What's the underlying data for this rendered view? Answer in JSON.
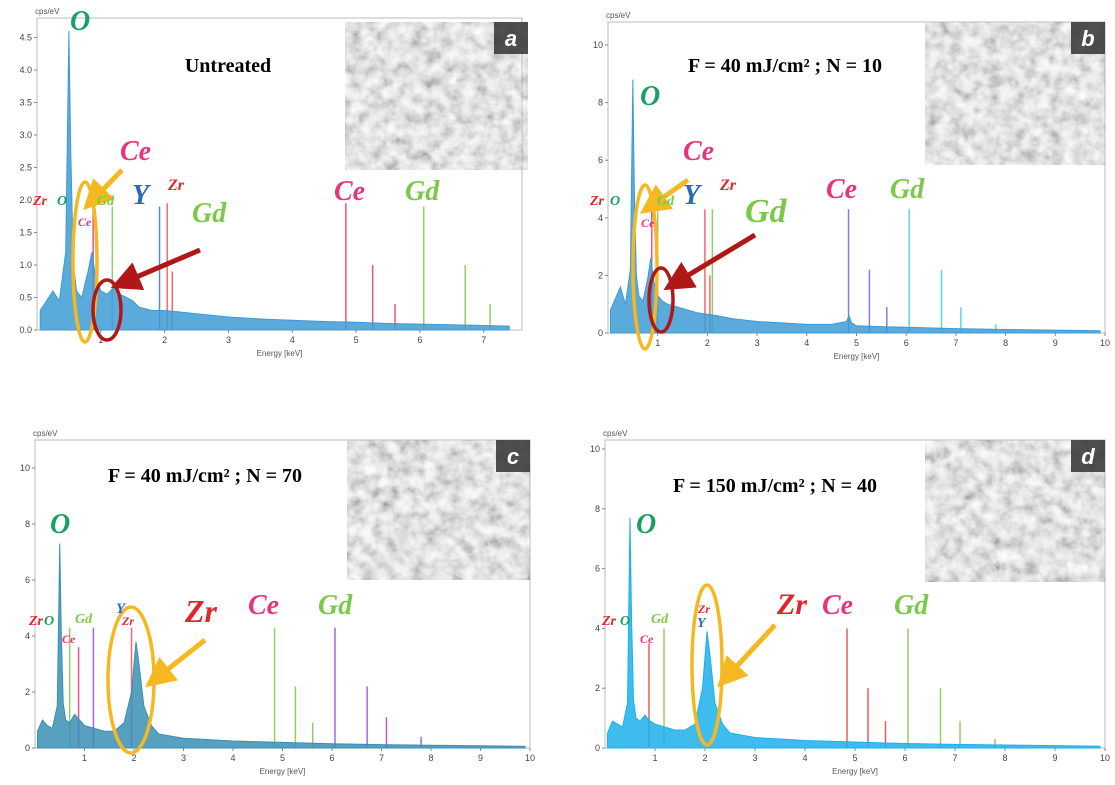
{
  "chart_data": [
    {
      "type": "area",
      "title": "Untreated",
      "x_label": "Energy [keV]",
      "y_label": "cps/eV",
      "inset_label": "a",
      "color": "#3d9bd6",
      "xlim": [
        0,
        7.6
      ],
      "ylim": [
        0,
        4.8
      ],
      "xticks": [
        1,
        2,
        3,
        4,
        5,
        6,
        7
      ],
      "yticks": [
        {
          "value": 0,
          "label": "0.0"
        },
        {
          "value": 0.5,
          "label": "0.5"
        },
        {
          "value": 1,
          "label": "1.0"
        },
        {
          "value": 1.5,
          "label": "1.5"
        },
        {
          "value": 2,
          "label": "2.0"
        },
        {
          "value": 2.5,
          "label": "2.5"
        },
        {
          "value": 3,
          "label": "3.0"
        },
        {
          "value": 3.5,
          "label": "3.5"
        },
        {
          "value": 4,
          "label": "4.0"
        },
        {
          "value": 4.5,
          "label": "4.5"
        }
      ],
      "x": [
        0.05,
        0.15,
        0.25,
        0.35,
        0.45,
        0.5,
        0.53,
        0.57,
        0.62,
        0.7,
        0.8,
        0.86,
        0.92,
        1.0,
        1.1,
        1.2,
        1.3,
        1.4,
        1.5,
        1.6,
        1.8,
        2.0,
        2.2,
        2.5,
        3.0,
        3.5,
        4.0,
        4.5,
        5.0,
        5.5,
        6.0,
        6.5,
        7.0,
        7.4
      ],
      "values": [
        0.3,
        0.45,
        0.6,
        0.45,
        1.2,
        4.6,
        2.7,
        1.0,
        0.6,
        0.5,
        0.9,
        1.2,
        0.8,
        0.6,
        0.55,
        0.65,
        0.55,
        0.5,
        0.45,
        0.35,
        0.3,
        0.3,
        0.28,
        0.25,
        0.2,
        0.17,
        0.15,
        0.13,
        0.12,
        0.1,
        0.09,
        0.08,
        0.07,
        0.06
      ],
      "markers": [
        {
          "color": "#e8347f",
          "x": [
            0.88,
            4.84,
            5.26,
            5.61
          ],
          "values": [
            1.9,
            1.95,
            1.0,
            0.4
          ]
        },
        {
          "color": "#7cc84a",
          "x": [
            1.18,
            6.06,
            6.71,
            7.1
          ],
          "values": [
            1.9,
            1.9,
            1.0,
            0.4
          ]
        },
        {
          "color": "#3a74c4",
          "x": [
            1.92
          ],
          "values": [
            1.9
          ]
        },
        {
          "color": "#f05050",
          "x": [
            2.04,
            2.12
          ],
          "values": [
            1.95,
            0.9
          ]
        }
      ],
      "annotations": [
        {
          "text": "O",
          "color": "#1aa060"
        },
        {
          "text": "Zr",
          "color": "#e0262b"
        },
        {
          "text": "O",
          "color": "#1aa060"
        },
        {
          "text": "Ce",
          "color": "#e8347f"
        },
        {
          "text": "Ce",
          "color": "#e8347f"
        },
        {
          "text": "Gd",
          "color": "#7cc84a"
        },
        {
          "text": "Y",
          "color": "#2a6bb5"
        },
        {
          "text": "Zr",
          "color": "#e0262b"
        },
        {
          "text": "Gd",
          "color": "#7cc84a"
        },
        {
          "text": "Ce",
          "color": "#e8347f"
        },
        {
          "text": "Gd",
          "color": "#7cc84a"
        }
      ]
    },
    {
      "type": "area",
      "title": "F = 40 mJ/cm² ; N = 10",
      "x_label": "Energy [keV]",
      "y_label": "cps/eV",
      "inset_label": "b",
      "color": "#3d9bd6",
      "xlim": [
        0,
        10
      ],
      "ylim": [
        0,
        10.8
      ],
      "xticks": [
        1,
        2,
        3,
        4,
        5,
        6,
        7,
        8,
        9,
        10
      ],
      "yticks": [
        0,
        2,
        4,
        6,
        8,
        10
      ],
      "x": [
        0.05,
        0.15,
        0.25,
        0.35,
        0.45,
        0.5,
        0.53,
        0.57,
        0.62,
        0.7,
        0.8,
        0.86,
        0.92,
        1.0,
        1.1,
        1.2,
        1.4,
        1.6,
        1.8,
        2.0,
        2.2,
        2.5,
        3.0,
        3.5,
        4.0,
        4.5,
        4.8,
        4.85,
        4.9,
        5.0,
        5.5,
        6.0,
        7.0,
        8.0,
        9.0,
        9.9
      ],
      "values": [
        0.8,
        1.2,
        1.6,
        1.0,
        2.2,
        8.8,
        5.0,
        2.0,
        1.3,
        1.1,
        1.9,
        2.6,
        1.8,
        1.3,
        1.1,
        1.0,
        0.9,
        0.8,
        0.7,
        0.65,
        0.6,
        0.5,
        0.4,
        0.35,
        0.3,
        0.3,
        0.4,
        0.6,
        0.35,
        0.25,
        0.22,
        0.2,
        0.15,
        0.12,
        0.1,
        0.08
      ],
      "markers": [
        {
          "color": "#e8347f",
          "x": [
            0.88
          ],
          "values": [
            4.3
          ]
        },
        {
          "color": "#7cc84a",
          "x": [
            1.0,
            2.1
          ],
          "values": [
            4.3,
            4.3
          ]
        },
        {
          "color": "#f05050",
          "x": [
            1.95,
            2.05
          ],
          "values": [
            4.3,
            2.0
          ]
        },
        {
          "color": "#6a6ad8",
          "x": [
            4.84,
            5.26,
            5.61
          ],
          "values": [
            4.3,
            2.2,
            0.9
          ]
        },
        {
          "color": "#40d0d8",
          "x": [
            6.06,
            6.71,
            7.1,
            7.8
          ],
          "values": [
            4.3,
            2.2,
            0.9,
            0.3
          ]
        }
      ],
      "annotations": [
        {
          "text": "O",
          "color": "#1aa060"
        },
        {
          "text": "Ce",
          "color": "#e8347f"
        },
        {
          "text": "Zr",
          "color": "#e0262b"
        },
        {
          "text": "O",
          "color": "#1aa060"
        },
        {
          "text": "Y",
          "color": "#2a6bb5"
        },
        {
          "text": "Zr",
          "color": "#e0262b"
        },
        {
          "text": "Gd",
          "color": "#7cc84a"
        },
        {
          "text": "Ce",
          "color": "#e8347f"
        },
        {
          "text": "Gd",
          "color": "#7cc84a"
        },
        {
          "text": "Ce",
          "color": "#e8347f"
        },
        {
          "text": "Gd",
          "color": "#7cc84a"
        }
      ]
    },
    {
      "type": "area",
      "title": "F = 40 mJ/cm² ; N = 70",
      "x_label": "Energy [keV]",
      "y_label": "cps/eV",
      "inset_label": "c",
      "color": "#3a8fb5",
      "xlim": [
        0,
        10
      ],
      "ylim": [
        0,
        11
      ],
      "xticks": [
        1,
        2,
        3,
        4,
        5,
        6,
        7,
        8,
        9,
        10
      ],
      "yticks": [
        0,
        2,
        4,
        6,
        8,
        10
      ],
      "x": [
        0.05,
        0.15,
        0.25,
        0.35,
        0.45,
        0.5,
        0.53,
        0.57,
        0.62,
        0.7,
        0.8,
        0.9,
        1.0,
        1.2,
        1.4,
        1.6,
        1.8,
        1.95,
        2.04,
        2.1,
        2.2,
        2.35,
        2.5,
        3.0,
        3.5,
        4.0,
        5.0,
        6.0,
        7.0,
        8.0,
        9.0,
        9.9
      ],
      "values": [
        0.6,
        1.0,
        0.8,
        0.7,
        1.5,
        7.3,
        4.2,
        1.6,
        1.0,
        0.9,
        1.2,
        1.0,
        0.8,
        0.7,
        0.6,
        0.6,
        0.9,
        2.0,
        3.8,
        3.0,
        1.5,
        0.8,
        0.5,
        0.35,
        0.3,
        0.25,
        0.2,
        0.15,
        0.12,
        0.1,
        0.08,
        0.06
      ],
      "markers": [
        {
          "color": "#7cc84a",
          "x": [
            0.7,
            4.84,
            5.26,
            5.61
          ],
          "values": [
            4.3,
            4.3,
            2.2,
            0.9
          ]
        },
        {
          "color": "#e8347f",
          "x": [
            0.88
          ],
          "values": [
            3.6
          ]
        },
        {
          "color": "#9a4ad8",
          "x": [
            1.18,
            6.06,
            6.71,
            7.1,
            7.8
          ],
          "values": [
            4.3,
            4.3,
            2.2,
            1.1,
            0.4
          ]
        },
        {
          "color": "#f05050",
          "x": [
            1.95
          ],
          "values": [
            4.3
          ]
        }
      ],
      "annotations": [
        {
          "text": "O",
          "color": "#1aa060"
        },
        {
          "text": "Zr",
          "color": "#e0262b"
        },
        {
          "text": "O",
          "color": "#1aa060"
        },
        {
          "text": "Gd",
          "color": "#7cc84a"
        },
        {
          "text": "Ce",
          "color": "#e8347f"
        },
        {
          "text": "Y",
          "color": "#2a6bb5"
        },
        {
          "text": "Zr",
          "color": "#e0262b"
        },
        {
          "text": "Zr",
          "color": "#e0262b"
        },
        {
          "text": "Ce",
          "color": "#e8347f"
        },
        {
          "text": "Gd",
          "color": "#7cc84a"
        }
      ]
    },
    {
      "type": "area",
      "title": "F = 150 mJ/cm² ; N = 40",
      "x_label": "Energy [keV]",
      "y_label": "cps/eV",
      "inset_label": "d",
      "color": "#1cb0ea",
      "xlim": [
        0,
        10
      ],
      "ylim": [
        0,
        10.3
      ],
      "xticks": [
        1,
        2,
        3,
        4,
        5,
        6,
        7,
        8,
        9,
        10
      ],
      "yticks": [
        0,
        2,
        4,
        6,
        8,
        10
      ],
      "x": [
        0.05,
        0.15,
        0.25,
        0.35,
        0.45,
        0.5,
        0.53,
        0.57,
        0.62,
        0.7,
        0.8,
        0.9,
        1.0,
        1.2,
        1.4,
        1.6,
        1.8,
        1.95,
        2.04,
        2.1,
        2.2,
        2.35,
        2.5,
        3.0,
        3.5,
        4.0,
        5.0,
        6.0,
        7.0,
        8.0,
        9.0,
        9.9
      ],
      "values": [
        0.5,
        0.9,
        0.8,
        0.7,
        1.5,
        7.7,
        4.4,
        1.6,
        1.0,
        0.9,
        1.1,
        0.9,
        0.8,
        0.7,
        0.6,
        0.6,
        0.8,
        2.0,
        3.9,
        3.1,
        1.5,
        0.8,
        0.5,
        0.35,
        0.3,
        0.25,
        0.2,
        0.15,
        0.12,
        0.1,
        0.08,
        0.06
      ],
      "markers": [
        {
          "color": "#e84040",
          "x": [
            0.88,
            4.84,
            5.26,
            5.61
          ],
          "values": [
            3.5,
            4.0,
            2.0,
            0.9
          ]
        },
        {
          "color": "#7cc84a",
          "x": [
            1.18,
            6.06,
            6.71,
            7.1,
            7.8
          ],
          "values": [
            4.0,
            4.0,
            2.0,
            0.9,
            0.3
          ]
        }
      ],
      "annotations": [
        {
          "text": "O",
          "color": "#1aa060"
        },
        {
          "text": "Zr",
          "color": "#e0262b"
        },
        {
          "text": "O",
          "color": "#1aa060"
        },
        {
          "text": "Gd",
          "color": "#7cc84a"
        },
        {
          "text": "Ce",
          "color": "#e8347f"
        },
        {
          "text": "Zr",
          "color": "#e0262b"
        },
        {
          "text": "Y",
          "color": "#2a6bb5"
        },
        {
          "text": "Zr",
          "color": "#e0262b"
        },
        {
          "text": "Ce",
          "color": "#e8347f"
        },
        {
          "text": "Gd",
          "color": "#7cc84a"
        }
      ]
    }
  ]
}
